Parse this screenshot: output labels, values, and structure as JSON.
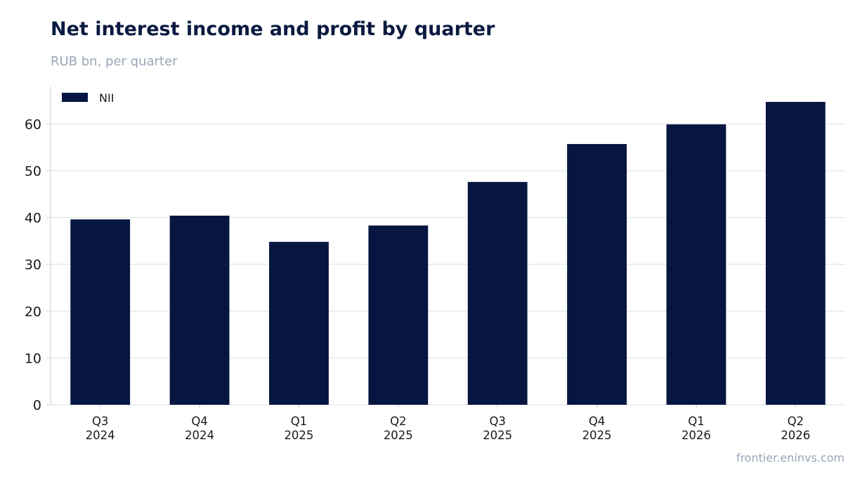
{
  "header": {
    "title": "Net interest income and profit by quarter",
    "subtitle": "RUB bn, per quarter"
  },
  "footer": {
    "source": "frontier.eninvs.com"
  },
  "colors": {
    "bar": "#061641",
    "grid": "#e6e8ec",
    "axis": "#cfd3da",
    "title": "#0b1a40",
    "muted": "#98a6b8"
  },
  "chart_data": {
    "type": "bar",
    "title": "Net interest income and profit by quarter",
    "subtitle": "RUB bn, per quarter",
    "categories": [
      [
        "Q3",
        "2024"
      ],
      [
        "Q4",
        "2024"
      ],
      [
        "Q1",
        "2025"
      ],
      [
        "Q2",
        "2025"
      ],
      [
        "Q3",
        "2025"
      ],
      [
        "Q4",
        "2025"
      ],
      [
        "Q1",
        "2026"
      ],
      [
        "Q2",
        "2026"
      ]
    ],
    "series": [
      {
        "name": "NII",
        "values": [
          39.6,
          40.4,
          34.8,
          38.3,
          47.6,
          55.7,
          59.9,
          64.7
        ]
      }
    ],
    "ylim": [
      0,
      68
    ],
    "yticks": [
      0,
      10,
      20,
      30,
      40,
      50,
      60
    ],
    "grid": true,
    "legend": "top-left"
  }
}
